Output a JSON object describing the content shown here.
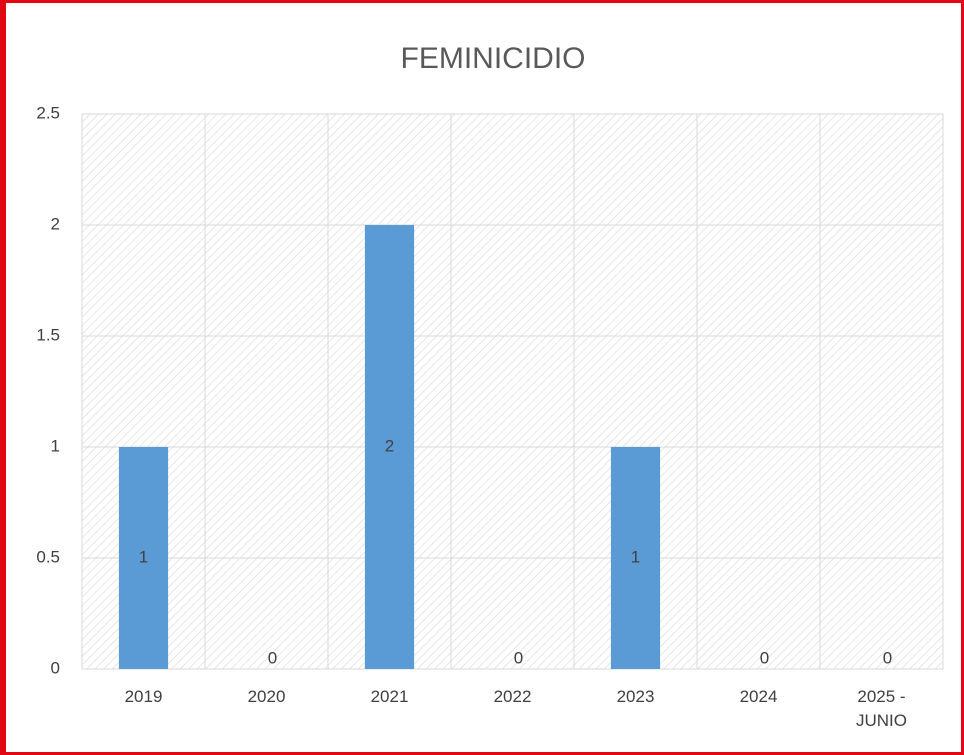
{
  "chart_data": {
    "type": "bar",
    "title": "FEMINICIDIO",
    "categories": [
      "2019",
      "2020",
      "2021",
      "2022",
      "2023",
      "2024",
      "2025 - JUNIO"
    ],
    "values": [
      1,
      0,
      2,
      0,
      1,
      0,
      0
    ],
    "color": "#5b9bd5",
    "ylim": [
      0,
      2.5
    ],
    "yticks": [
      0,
      0.5,
      1,
      1.5,
      2,
      2.5
    ],
    "grid": true
  }
}
